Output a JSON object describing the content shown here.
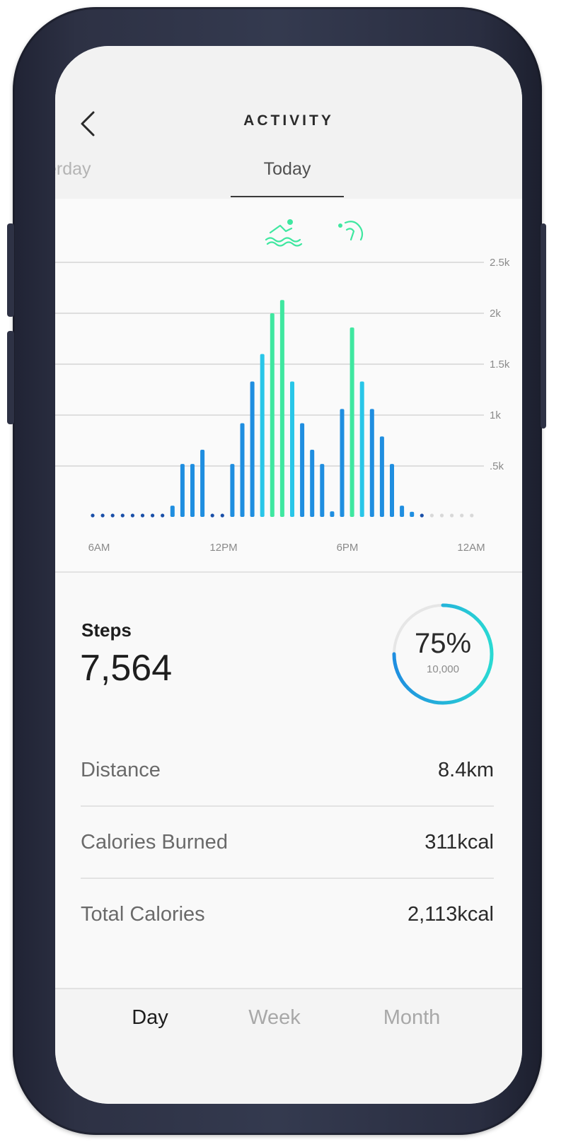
{
  "header": {
    "title": "ACTIVITY",
    "day_prev": "erday",
    "day_current": "Today"
  },
  "icons": {
    "back": "back-arrow-icon",
    "swim": "swimming-icon",
    "workout": "stretching-icon"
  },
  "colors": {
    "bar_blue": "#1f8ee0",
    "bar_cyan": "#29c6e8",
    "bar_green": "#3fe7a0",
    "ring_blue": "#1f8ee0",
    "ring_cyan": "#2ad9d3",
    "dot_dark": "#1a4fa8",
    "dot_light": "#d8d8d8"
  },
  "chart_data": {
    "type": "bar",
    "x_ticks": [
      "6AM",
      "12PM",
      "6PM",
      "12AM"
    ],
    "y_ticks": [
      "2.5k",
      "2k",
      "1.5k",
      "1k",
      ".5k"
    ],
    "ylim": [
      0,
      2500
    ],
    "grid": true,
    "bars": [
      {
        "v": 0,
        "c": "dot"
      },
      {
        "v": 0,
        "c": "dot"
      },
      {
        "v": 0,
        "c": "dot"
      },
      {
        "v": 0,
        "c": "dot"
      },
      {
        "v": 0,
        "c": "dot"
      },
      {
        "v": 0,
        "c": "dot"
      },
      {
        "v": 0,
        "c": "dot"
      },
      {
        "v": 0,
        "c": "dot"
      },
      {
        "v": 110,
        "c": "blue"
      },
      {
        "v": 520,
        "c": "blue"
      },
      {
        "v": 520,
        "c": "blue"
      },
      {
        "v": 660,
        "c": "blue"
      },
      {
        "v": 0,
        "c": "dot"
      },
      {
        "v": 0,
        "c": "dot"
      },
      {
        "v": 520,
        "c": "blue"
      },
      {
        "v": 920,
        "c": "blue"
      },
      {
        "v": 1330,
        "c": "blue"
      },
      {
        "v": 1600,
        "c": "cyan"
      },
      {
        "v": 2000,
        "c": "green"
      },
      {
        "v": 2130,
        "c": "green"
      },
      {
        "v": 1330,
        "c": "cyan"
      },
      {
        "v": 920,
        "c": "blue"
      },
      {
        "v": 660,
        "c": "blue"
      },
      {
        "v": 520,
        "c": "blue"
      },
      {
        "v": 55,
        "c": "blue"
      },
      {
        "v": 1060,
        "c": "blue"
      },
      {
        "v": 1860,
        "c": "green"
      },
      {
        "v": 1330,
        "c": "cyan"
      },
      {
        "v": 1060,
        "c": "blue"
      },
      {
        "v": 790,
        "c": "blue"
      },
      {
        "v": 520,
        "c": "blue"
      },
      {
        "v": 110,
        "c": "blue"
      },
      {
        "v": 50,
        "c": "blue"
      },
      {
        "v": 0,
        "c": "dot"
      },
      {
        "v": 0,
        "c": "dotlight"
      },
      {
        "v": 0,
        "c": "dotlight"
      },
      {
        "v": 0,
        "c": "dotlight"
      },
      {
        "v": 0,
        "c": "dotlight"
      },
      {
        "v": 0,
        "c": "dotlight"
      }
    ]
  },
  "steps": {
    "label": "Steps",
    "value": "7,564",
    "percent": "75%",
    "goal": "10,000",
    "progress": 0.75
  },
  "stats": [
    {
      "label": "Distance",
      "value": "8.4km"
    },
    {
      "label": "Calories Burned",
      "value": "311kcal"
    },
    {
      "label": "Total Calories",
      "value": "2,113kcal"
    }
  ],
  "tabs": [
    "Day",
    "Week",
    "Month"
  ]
}
